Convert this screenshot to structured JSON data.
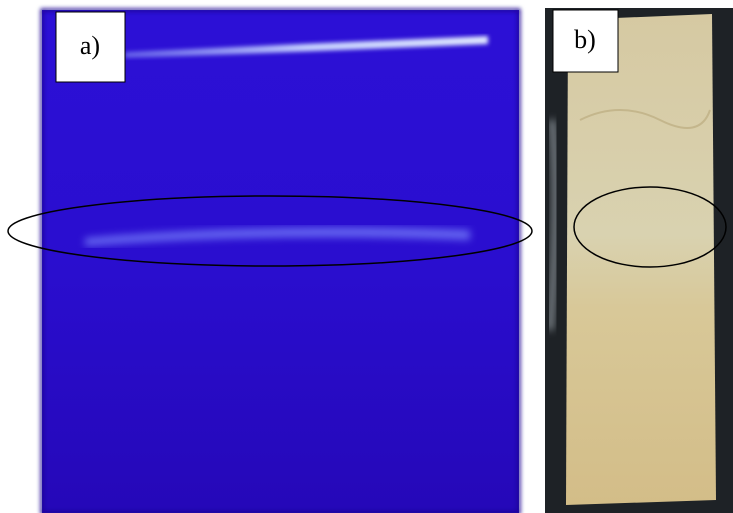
{
  "panels": [
    {
      "label": "a)"
    },
    {
      "label": "b)"
    }
  ]
}
